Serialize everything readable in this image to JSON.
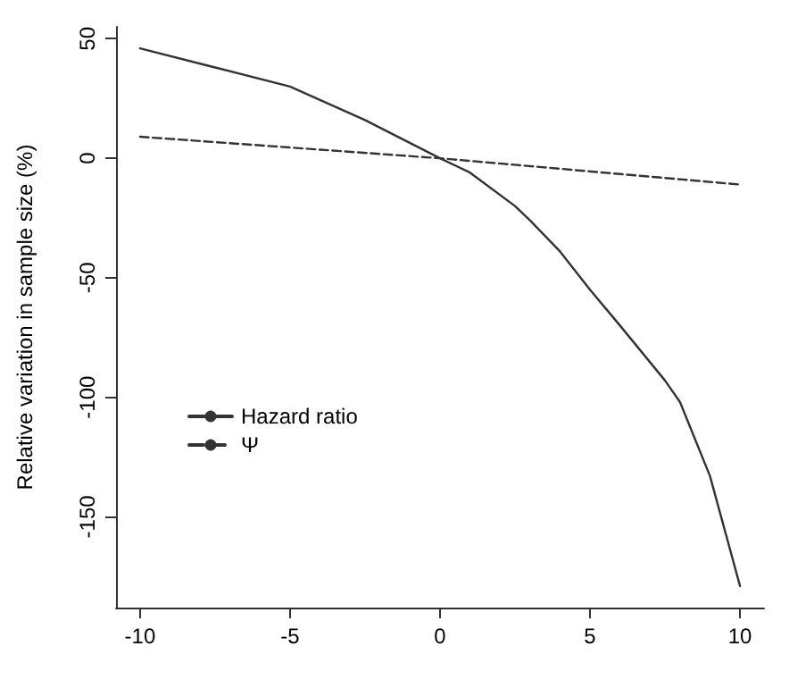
{
  "chart_data": {
    "type": "line",
    "ylabel": "Relative variation in sample size (%)",
    "xlim": [
      -10.8,
      10.8
    ],
    "xticks": [
      -10,
      -5,
      0,
      5,
      10
    ],
    "ylim": [
      -188,
      55
    ],
    "yticks": [
      -150,
      -100,
      -50,
      0,
      50
    ],
    "grid": false,
    "legend": "bottom left",
    "marker": "none",
    "series": [
      {
        "name": "Hazard ratio",
        "color": "#333333",
        "line_style": "solid",
        "x": [
          -10,
          -7.5,
          -5,
          -2.5,
          0,
          1,
          2.5,
          3,
          4,
          5,
          6,
          7.5,
          8,
          9,
          10
        ],
        "values": [
          46,
          38,
          30,
          16,
          0,
          -6,
          -20,
          -26,
          -39,
          -55,
          -70,
          -93,
          -102,
          -133,
          -179
        ]
      },
      {
        "name": "Ψ",
        "color": "#333333",
        "line_style": "dashed",
        "x": [
          -10,
          0,
          10
        ],
        "values": [
          9,
          0,
          -11
        ]
      }
    ]
  }
}
